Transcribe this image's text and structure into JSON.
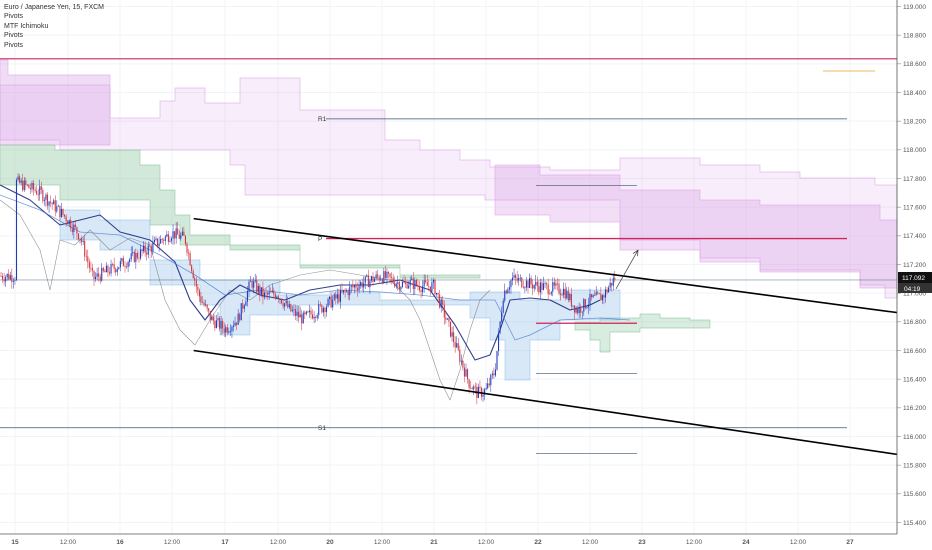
{
  "legend": {
    "symbol": "Euro / Japanese Yen, 15, FXCM",
    "indicators": [
      "Pivots",
      "MTF Ichimoku",
      "Pivots",
      "Pivots"
    ]
  },
  "price_badge": {
    "price": "117.092",
    "countdown": "04:19"
  },
  "colors": {
    "candle_up": "#1f3bbd",
    "candle_down": "#d0323c",
    "pivot_p": "#d0245a",
    "pivot_line": "#3a5370",
    "trendline": "#000000",
    "cloud_purple": "#d89be6",
    "cloud_green": "#7fbf95",
    "cloud_blue": "#8fbde8"
  },
  "chart_data": {
    "type": "candlestick",
    "y_axis": {
      "position": "right",
      "range": [
        115.35,
        119.05
      ],
      "ticks": [
        "119.000",
        "118.800",
        "118.600",
        "118.400",
        "118.200",
        "118.000",
        "117.800",
        "117.600",
        "117.400",
        "117.200",
        "117.000",
        "116.800",
        "116.600",
        "116.400",
        "116.200",
        "116.000",
        "115.800",
        "115.600",
        "115.400"
      ]
    },
    "x_axis": {
      "ticks": [
        "15",
        "12:00",
        "16",
        "12:00",
        "17",
        "12:00",
        "20",
        "12:00",
        "21",
        "12:00",
        "22",
        "12:00",
        "23",
        "12:00",
        "24",
        "12:00",
        "27"
      ]
    },
    "current_price": 117.092,
    "pivot_lines": [
      {
        "label": "R1",
        "value": 118.216
      },
      {
        "label": "P",
        "value": 117.381
      },
      {
        "label": "S1",
        "value": 116.061
      }
    ],
    "weekly_level": 118.635,
    "secondary_levels": [
      117.75,
      116.79,
      116.44,
      115.88,
      118.55
    ],
    "trendlines": [
      {
        "name": "channel-upper",
        "from": [
          "16 17:00",
          117.52
        ],
        "to": [
          "27 12:00",
          116.86
        ]
      },
      {
        "name": "channel-lower",
        "from": [
          "16 17:00",
          116.6
        ],
        "to": [
          "27 12:00",
          115.87
        ]
      }
    ],
    "projection_arrow": {
      "from": [
        "22 18:00",
        117.03
      ],
      "to": [
        "23 00:00",
        117.3
      ]
    },
    "price_path": [
      [
        "15 00:00",
        117.78
      ],
      [
        "15 06:00",
        117.7
      ],
      [
        "15 12:00",
        117.52
      ],
      [
        "15 15:00",
        117.4
      ],
      [
        "15 18:00",
        117.1
      ],
      [
        "16 00:00",
        117.2
      ],
      [
        "16 06:00",
        117.3
      ],
      [
        "16 12:00",
        117.42
      ],
      [
        "16 15:00",
        117.38
      ],
      [
        "16 18:00",
        117.0
      ],
      [
        "16 21:00",
        116.82
      ],
      [
        "17 00:00",
        116.75
      ],
      [
        "17 03:00",
        116.82
      ],
      [
        "17 06:00",
        117.08
      ],
      [
        "17 09:00",
        116.98
      ],
      [
        "17 12:00",
        117.0
      ],
      [
        "17 15:00",
        116.88
      ],
      [
        "17 18:00",
        116.82
      ],
      [
        "18 00:00",
        116.93
      ],
      [
        "18 06:00",
        117.05
      ],
      [
        "18 12:00",
        117.12
      ],
      [
        "18 18:00",
        117.05
      ],
      [
        "20 03:00",
        117.15
      ],
      [
        "20 09:00",
        117.05
      ],
      [
        "20 15:00",
        117.1
      ],
      [
        "20 21:00",
        117.05
      ],
      [
        "21 00:00",
        117.05
      ],
      [
        "21 03:00",
        116.8
      ],
      [
        "21 06:00",
        116.55
      ],
      [
        "21 08:00",
        116.38
      ],
      [
        "21 10:00",
        116.3
      ],
      [
        "21 12:00",
        116.32
      ],
      [
        "21 14:00",
        116.45
      ],
      [
        "21 16:00",
        117.0
      ],
      [
        "21 18:00",
        117.1
      ],
      [
        "22 00:00",
        117.05
      ],
      [
        "22 06:00",
        117.02
      ],
      [
        "22 09:00",
        116.88
      ],
      [
        "22 12:00",
        116.95
      ],
      [
        "22 15:00",
        116.98
      ],
      [
        "22 18:00",
        117.12
      ]
    ]
  }
}
